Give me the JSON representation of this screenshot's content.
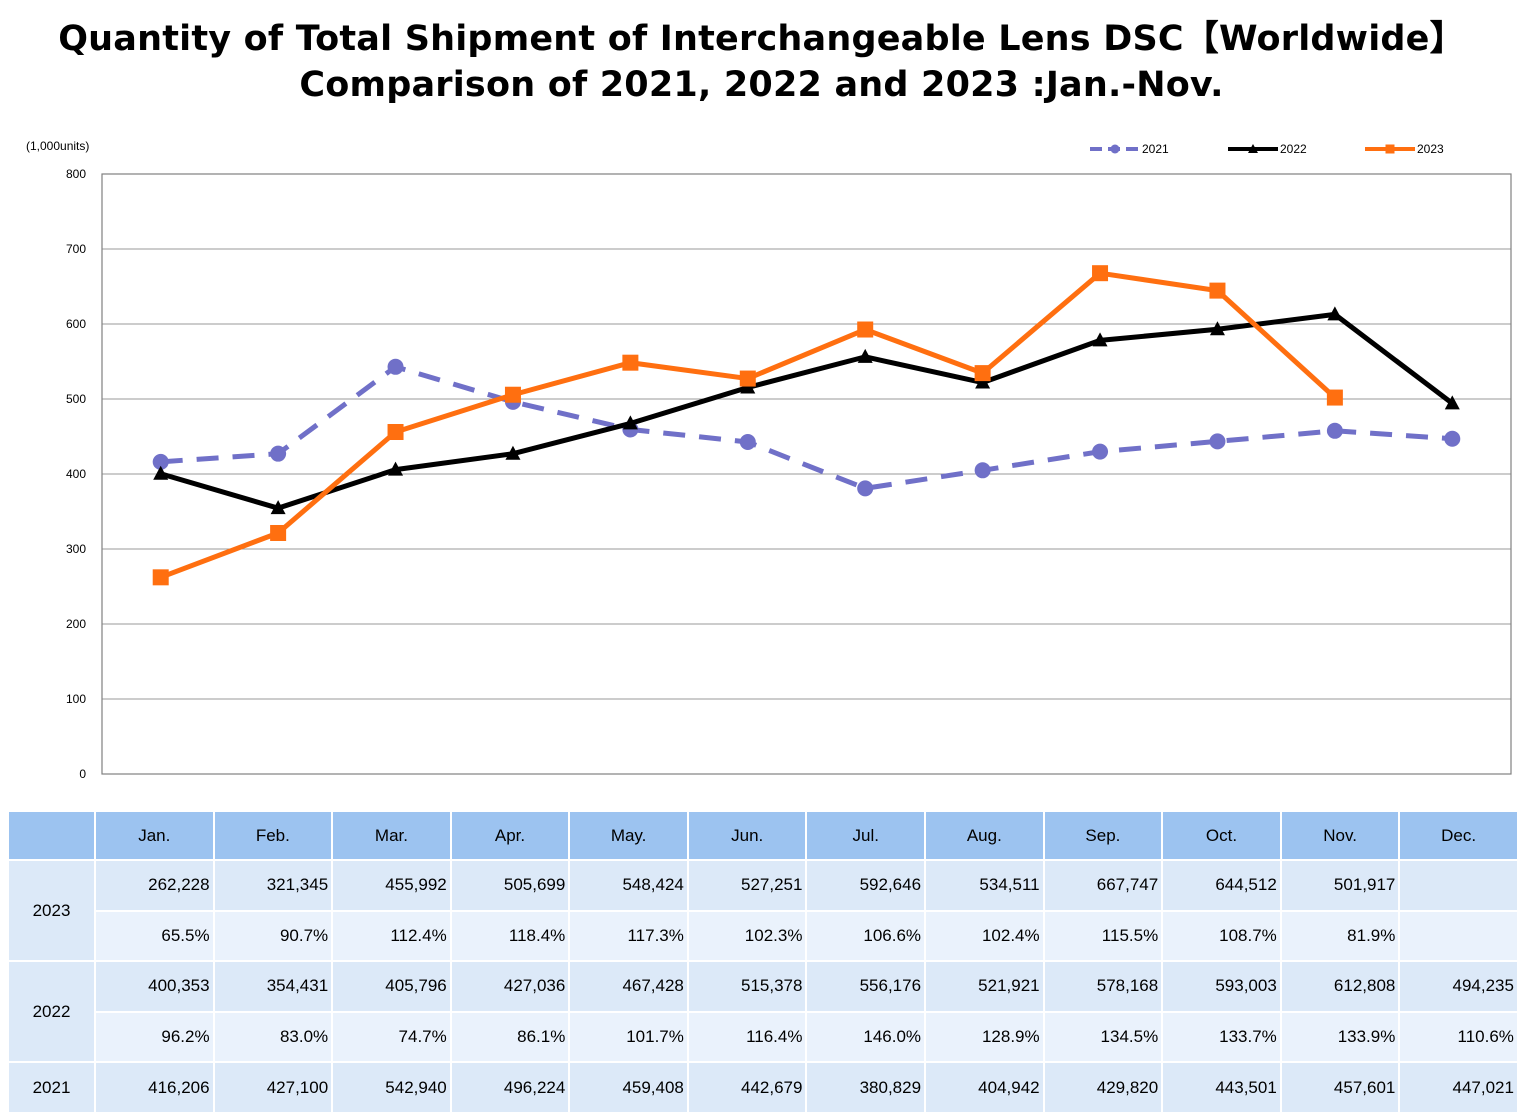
{
  "title_line1": "Quantity of Total Shipment of Interchangeable Lens DSC【Worldwide】",
  "title_line2": "Comparison of 2021, 2022 and 2023 :Jan.-Nov.",
  "chart_data": {
    "type": "line",
    "title": "Quantity of Total Shipment of Interchangeable Lens DSC【Worldwide】 Comparison of 2021, 2022 and 2023 :Jan.-Nov.",
    "ylabel": "(1,000units)",
    "ylim": [
      0,
      800
    ],
    "yticks": [
      "0",
      "100",
      "200",
      "300",
      "400",
      "500",
      "600",
      "700",
      "800"
    ],
    "grid": true,
    "legend_position": "top-right",
    "categories": [
      "Jan.",
      "Feb.",
      "Mar.",
      "Apr.",
      "May.",
      "Jun.",
      "Jul.",
      "Aug.",
      "Sep.",
      "Oct.",
      "Nov.",
      "Dec."
    ],
    "series": [
      {
        "name": "2021",
        "color": "#7070c8",
        "style": "dashed",
        "marker": "circle",
        "values": [
          416.206,
          427.1,
          542.94,
          496.224,
          459.408,
          442.679,
          380.829,
          404.942,
          429.82,
          443.501,
          457.601,
          447.021
        ]
      },
      {
        "name": "2022",
        "color": "#000000",
        "style": "solid",
        "marker": "triangle",
        "values": [
          400.353,
          354.431,
          405.796,
          427.036,
          467.428,
          515.378,
          556.176,
          521.921,
          578.168,
          593.003,
          612.808,
          494.235
        ]
      },
      {
        "name": "2023",
        "color": "#ff6f10",
        "style": "solid",
        "marker": "square",
        "values": [
          262.228,
          321.345,
          455.992,
          505.699,
          548.424,
          527.251,
          592.646,
          534.511,
          667.747,
          644.512,
          501.917,
          null
        ]
      }
    ]
  },
  "table": {
    "months": [
      "Jan.",
      "Feb.",
      "Mar.",
      "Apr.",
      "May.",
      "Jun.",
      "Jul.",
      "Aug.",
      "Sep.",
      "Oct.",
      "Nov.",
      "Dec."
    ],
    "y2023": {
      "label": "2023",
      "qty": [
        "262,228",
        "321,345",
        "455,992",
        "505,699",
        "548,424",
        "527,251",
        "592,646",
        "534,511",
        "667,747",
        "644,512",
        "501,917",
        ""
      ],
      "pct": [
        "65.5%",
        "90.7%",
        "112.4%",
        "118.4%",
        "117.3%",
        "102.3%",
        "106.6%",
        "102.4%",
        "115.5%",
        "108.7%",
        "81.9%",
        ""
      ]
    },
    "y2022": {
      "label": "2022",
      "qty": [
        "400,353",
        "354,431",
        "405,796",
        "427,036",
        "467,428",
        "515,378",
        "556,176",
        "521,921",
        "578,168",
        "593,003",
        "612,808",
        "494,235"
      ],
      "pct": [
        "96.2%",
        "83.0%",
        "74.7%",
        "86.1%",
        "101.7%",
        "116.4%",
        "146.0%",
        "128.9%",
        "134.5%",
        "133.7%",
        "133.9%",
        "110.6%"
      ]
    },
    "y2021": {
      "label": "2021",
      "qty": [
        "416,206",
        "427,100",
        "542,940",
        "496,224",
        "459,408",
        "442,679",
        "380,829",
        "404,942",
        "429,820",
        "443,501",
        "457,601",
        "447,021"
      ]
    }
  }
}
